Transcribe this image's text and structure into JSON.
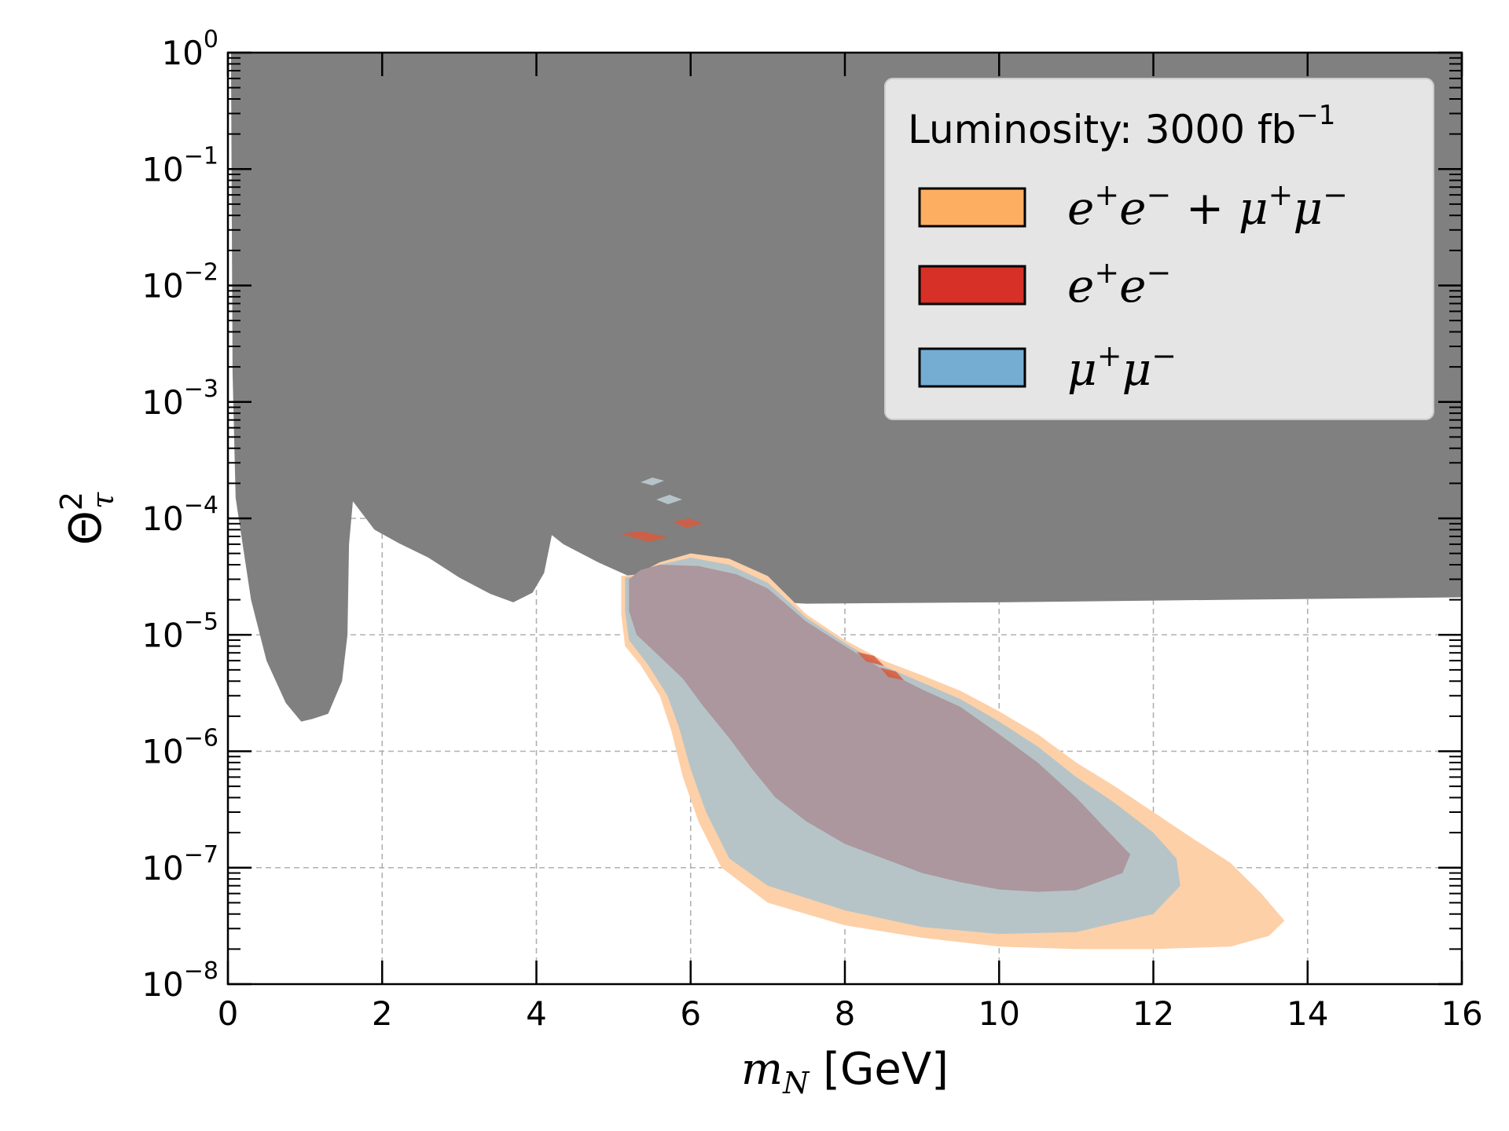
{
  "chart_data": {
    "type": "area",
    "xlabel": "m_N [GeV]",
    "ylabel": "Θ_τ^2",
    "xlim": [
      0,
      16
    ],
    "ylim": [
      1e-08,
      1
    ],
    "yscale": "log",
    "grid": true,
    "x_ticks": [
      "0",
      "2",
      "4",
      "6",
      "8",
      "10",
      "12",
      "14",
      "16"
    ],
    "y_ticks": [
      {
        "base": "10",
        "exp": "0"
      },
      {
        "base": "10",
        "exp": "−1"
      },
      {
        "base": "10",
        "exp": "−2"
      },
      {
        "base": "10",
        "exp": "−3"
      },
      {
        "base": "10",
        "exp": "−4"
      },
      {
        "base": "10",
        "exp": "−5"
      },
      {
        "base": "10",
        "exp": "−6"
      },
      {
        "base": "10",
        "exp": "−7"
      },
      {
        "base": "10",
        "exp": "−8"
      }
    ],
    "legend": {
      "placement": "top-right",
      "title": "Luminosity: 3000 fb",
      "title_exp": "−1",
      "entries": [
        {
          "name": "e+e−+μ+μ−",
          "color": "#fdae61"
        },
        {
          "name": "e+e−",
          "color": "#d73027"
        },
        {
          "name": "μ+μ−",
          "color": "#74add1"
        }
      ]
    },
    "colors": {
      "excluded": "#808080",
      "combined": "#fdd0a8",
      "mumu": "#b6c4c8",
      "ee": "#ab979d",
      "ee_edge": "#d75a3d"
    },
    "series": [
      {
        "name": "excluded",
        "points": [
          [
            0.04,
            1
          ],
          [
            0.06,
            0.0018
          ],
          [
            0.1,
            0.00015
          ],
          [
            0.3,
            2e-05
          ],
          [
            0.5,
            6e-06
          ],
          [
            0.75,
            2.6e-06
          ],
          [
            0.95,
            1.8e-06
          ],
          [
            1.1,
            1.9e-06
          ],
          [
            1.3,
            2.1e-06
          ],
          [
            1.48,
            4e-06
          ],
          [
            1.55,
            1e-05
          ],
          [
            1.57,
            6e-05
          ],
          [
            1.62,
            0.00014
          ],
          [
            1.9,
            8e-05
          ],
          [
            2.2,
            6.2e-05
          ],
          [
            2.6,
            4.6e-05
          ],
          [
            3.0,
            3.1e-05
          ],
          [
            3.4,
            2.25e-05
          ],
          [
            3.7,
            1.9e-05
          ],
          [
            3.95,
            2.3e-05
          ],
          [
            4.1,
            3.4e-05
          ],
          [
            4.2,
            7.2e-05
          ],
          [
            4.35,
            6e-05
          ],
          [
            4.8,
            4.2e-05
          ],
          [
            5.5,
            2.6e-05
          ],
          [
            6.5,
            2e-05
          ],
          [
            7.5,
            1.85e-05
          ],
          [
            10,
            1.9e-05
          ],
          [
            13,
            2e-05
          ],
          [
            16,
            2.1e-05
          ],
          [
            16,
            1
          ]
        ]
      },
      {
        "name": "e+e−+μ+μ−",
        "points": [
          [
            5.1,
            3.2e-05
          ],
          [
            5.3,
            3.3e-05
          ],
          [
            5.6,
            4.2e-05
          ],
          [
            6.0,
            5e-05
          ],
          [
            6.5,
            4.5e-05
          ],
          [
            7.0,
            3.2e-05
          ],
          [
            7.5,
            1.5e-05
          ],
          [
            8.0,
            9e-06
          ],
          [
            8.5,
            6e-06
          ],
          [
            9.0,
            4.5e-06
          ],
          [
            9.5,
            3.3e-06
          ],
          [
            10.0,
            2.2e-06
          ],
          [
            10.5,
            1.4e-06
          ],
          [
            11.0,
            8e-07
          ],
          [
            11.5,
            5e-07
          ],
          [
            12.0,
            3e-07
          ],
          [
            12.5,
            1.8e-07
          ],
          [
            13.0,
            1.1e-07
          ],
          [
            13.4,
            6e-08
          ],
          [
            13.7,
            3.5e-08
          ],
          [
            13.5,
            2.6e-08
          ],
          [
            13.0,
            2.1e-08
          ],
          [
            12.0,
            2e-08
          ],
          [
            11.0,
            2e-08
          ],
          [
            10.0,
            2.1e-08
          ],
          [
            9.0,
            2.5e-08
          ],
          [
            8.0,
            3.2e-08
          ],
          [
            7.0,
            5e-08
          ],
          [
            6.4,
            1e-07
          ],
          [
            6.1,
            2.5e-07
          ],
          [
            5.9,
            6e-07
          ],
          [
            5.75,
            1.5e-06
          ],
          [
            5.6,
            3e-06
          ],
          [
            5.35,
            5.5e-06
          ],
          [
            5.15,
            8e-06
          ],
          [
            5.1,
            1.5e-05
          ]
        ]
      },
      {
        "name": "μ+μ−",
        "points": [
          [
            5.15,
            3.1e-05
          ],
          [
            5.35,
            3.2e-05
          ],
          [
            5.6,
            4e-05
          ],
          [
            6.0,
            4.6e-05
          ],
          [
            6.5,
            4e-05
          ],
          [
            7.0,
            2.8e-05
          ],
          [
            7.5,
            1.4e-05
          ],
          [
            8.0,
            8.5e-06
          ],
          [
            8.5,
            5.4e-06
          ],
          [
            9.0,
            3.9e-06
          ],
          [
            9.5,
            2.8e-06
          ],
          [
            10.0,
            1.8e-06
          ],
          [
            10.5,
            1.1e-06
          ],
          [
            11.0,
            6e-07
          ],
          [
            11.5,
            3.6e-07
          ],
          [
            12.0,
            2e-07
          ],
          [
            12.3,
            1.2e-07
          ],
          [
            12.35,
            7e-08
          ],
          [
            12.0,
            4e-08
          ],
          [
            11.0,
            2.8e-08
          ],
          [
            10.0,
            2.7e-08
          ],
          [
            9.0,
            3.1e-08
          ],
          [
            8.0,
            4.3e-08
          ],
          [
            7.0,
            7e-08
          ],
          [
            6.5,
            1.2e-07
          ],
          [
            6.2,
            3e-07
          ],
          [
            6.0,
            7e-07
          ],
          [
            5.85,
            1.6e-06
          ],
          [
            5.7,
            3e-06
          ],
          [
            5.45,
            5.5e-06
          ],
          [
            5.2,
            9e-06
          ],
          [
            5.15,
            1.6e-05
          ]
        ]
      },
      {
        "name": "e+e−",
        "points": [
          [
            5.2,
            3e-05
          ],
          [
            5.35,
            3.6e-05
          ],
          [
            5.6,
            4e-05
          ],
          [
            6.1,
            3.9e-05
          ],
          [
            6.6,
            3.3e-05
          ],
          [
            7.0,
            2.5e-05
          ],
          [
            7.5,
            1.3e-05
          ],
          [
            8.0,
            8e-06
          ],
          [
            8.5,
            5e-06
          ],
          [
            9.0,
            3.4e-06
          ],
          [
            9.5,
            2.4e-06
          ],
          [
            10.0,
            1.4e-06
          ],
          [
            10.5,
            8e-07
          ],
          [
            11.0,
            4e-07
          ],
          [
            11.4,
            2.1e-07
          ],
          [
            11.7,
            1.3e-07
          ],
          [
            11.6,
            9e-08
          ],
          [
            11.0,
            6.4e-08
          ],
          [
            10.5,
            6.2e-08
          ],
          [
            10.0,
            6.5e-08
          ],
          [
            9.5,
            7.5e-08
          ],
          [
            9.0,
            9e-08
          ],
          [
            8.5,
            1.2e-07
          ],
          [
            8.0,
            1.6e-07
          ],
          [
            7.5,
            2.5e-07
          ],
          [
            7.1,
            4e-07
          ],
          [
            6.8,
            7e-07
          ],
          [
            6.5,
            1.3e-06
          ],
          [
            6.15,
            2.5e-06
          ],
          [
            5.9,
            4.2e-06
          ],
          [
            5.6,
            6.5e-06
          ],
          [
            5.3,
            1e-05
          ],
          [
            5.2,
            1.6e-05
          ]
        ]
      }
    ]
  }
}
